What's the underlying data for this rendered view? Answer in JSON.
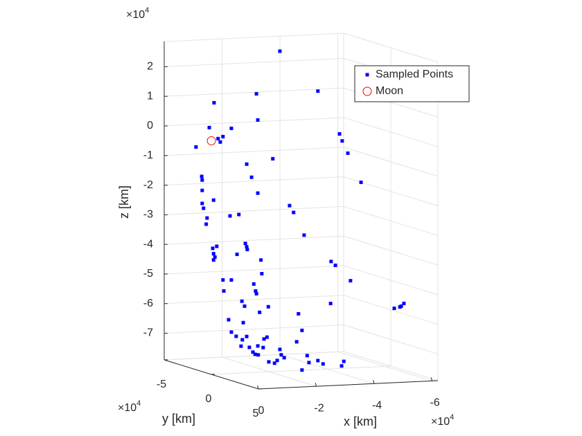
{
  "chart_data": {
    "type": "scatter3d",
    "xlabel": "x [km]",
    "ylabel": "y [km]",
    "zlabel": "z [km]",
    "x_exponent": {
      "base": "×10",
      "power": "4"
    },
    "y_exponent": {
      "base": "×10",
      "power": "4"
    },
    "z_exponent": {
      "base": "×10",
      "power": "4"
    },
    "xlim": [
      -6.2,
      0
    ],
    "ylim": [
      -5,
      5
    ],
    "zlim": [
      -7.9,
      2.85
    ],
    "xticks": [
      0,
      -2,
      -4,
      -6
    ],
    "yticks": [
      -5,
      0,
      5
    ],
    "zticks": [
      -7,
      -6,
      -5,
      -4,
      -3,
      -2,
      -1,
      0,
      1,
      2
    ],
    "grid": true,
    "legend": "northeast",
    "series": [
      {
        "name": "Sampled Points",
        "color": "#0000ff",
        "marker": "square",
        "x": [
          -2.62,
          -3.48,
          -2.09,
          -1.13,
          -2.12,
          -1.02,
          -1.52,
          -1.33,
          -1.22,
          -1.27,
          -0.72,
          -3.97,
          -4.03,
          -4.16,
          -2.46,
          -1.87,
          -1.98,
          -0.85,
          -0.86,
          -4.46,
          -0.86,
          -2.12,
          -1.12,
          -0.86,
          -0.89,
          -2.84,
          -2.93,
          -1.69,
          -1.49,
          -0.97,
          -0.95,
          -3.17,
          -1.84,
          -1.87,
          -1.88,
          -1.19,
          -1.1,
          -1.12,
          -1.15,
          -1.12,
          -1.65,
          -2.19,
          -3.78,
          -3.88,
          -2.21,
          -4.22,
          -1.33,
          -1.52,
          -2.03,
          -2.07,
          -2.09,
          -1.35,
          -1.76,
          -1.82,
          -2.36,
          -3.77,
          -5.21,
          -5.34,
          -5.37,
          -5.43,
          -2.16,
          -3.04,
          -1.46,
          -1.79,
          -3.12,
          -1.52,
          -1.63,
          -1.87,
          -1.77,
          -3.0,
          -2.33,
          -2.26,
          -1.74,
          -1.93,
          -2.12,
          -2.24,
          -2.01,
          -2.06,
          -2.13,
          -2.62,
          -2.65,
          -3.24,
          -2.37,
          -2.5,
          -2.56,
          -2.72,
          -3.48,
          -3.6,
          -4.07,
          -3.12,
          -4.02,
          -3.28
        ],
        "y": [
          -0.77,
          0.62,
          -1.63,
          -3.18,
          -1.58,
          -3.35,
          -2.54,
          -2.85,
          -3.03,
          -2.95,
          -3.84,
          1.41,
          1.51,
          1.71,
          -1.03,
          -1.99,
          -1.81,
          -3.63,
          -3.61,
          2.19,
          -3.61,
          -1.58,
          -3.2,
          -3.61,
          -3.56,
          -0.42,
          -0.27,
          -2.27,
          -2.59,
          -3.43,
          -3.46,
          0.11,
          -2.04,
          -1.99,
          -1.96,
          -3.08,
          -3.23,
          -3.2,
          -3.15,
          -3.2,
          -2.34,
          -1.46,
          1.1,
          1.25,
          -1.43,
          1.81,
          -2.85,
          -2.54,
          -1.73,
          -1.66,
          -1.63,
          -2.82,
          -2.16,
          -2.06,
          -1.2,
          1.08,
          3.41,
          3.61,
          3.66,
          3.76,
          -1.51,
          -0.09,
          -2.65,
          -2.11,
          0.04,
          -2.54,
          -2.37,
          -1.99,
          -2.14,
          -0.16,
          -1.25,
          -1.35,
          -2.19,
          -1.89,
          -1.58,
          -1.38,
          -1.76,
          -1.68,
          -1.56,
          -0.77,
          -0.72,
          0.22,
          -1.18,
          -0.97,
          -0.87,
          -0.62,
          0.62,
          0.8,
          1.56,
          0.04,
          1.48,
          0.29
        ],
        "z": [
          2.82,
          1.57,
          1.32,
          0.91,
          0.44,
          0.06,
          0.09,
          -0.21,
          -0.29,
          -0.4,
          -0.63,
          0.18,
          -0.05,
          -0.45,
          -0.83,
          -1.08,
          -1.51,
          -1.61,
          -1.73,
          -1.4,
          -2.08,
          -2.03,
          -2.38,
          -2.52,
          -2.68,
          -2.37,
          -2.59,
          -2.8,
          -2.87,
          -3.0,
          -3.21,
          -3.33,
          -3.76,
          -3.87,
          -3.96,
          -3.93,
          -4.01,
          -4.19,
          -4.3,
          -4.4,
          -4.15,
          -4.28,
          -4.15,
          -4.27,
          -4.74,
          -4.75,
          -5.05,
          -5.03,
          -5.11,
          -5.34,
          -5.43,
          -5.42,
          -5.72,
          -5.88,
          -5.84,
          -5.57,
          -5.57,
          -5.51,
          -5.48,
          -5.38,
          -6.05,
          -6.0,
          -6.38,
          -6.44,
          -6.55,
          -6.79,
          -6.92,
          -6.9,
          -7.02,
          -6.95,
          -6.87,
          -6.94,
          -7.24,
          -7.26,
          -7.19,
          -7.23,
          -7.41,
          -7.48,
          -7.49,
          -7.25,
          -7.43,
          -7.39,
          -7.7,
          -7.73,
          -7.63,
          -7.52,
          -7.53,
          -7.63,
          -7.49,
          -7.89,
          -7.65,
          -7.62
        ]
      },
      {
        "name": "Moon",
        "color": "#ff0000",
        "marker": "circle",
        "x": [
          -1.07
        ],
        "y": [
          -3.28
        ],
        "z": [
          -0.38
        ]
      }
    ]
  }
}
